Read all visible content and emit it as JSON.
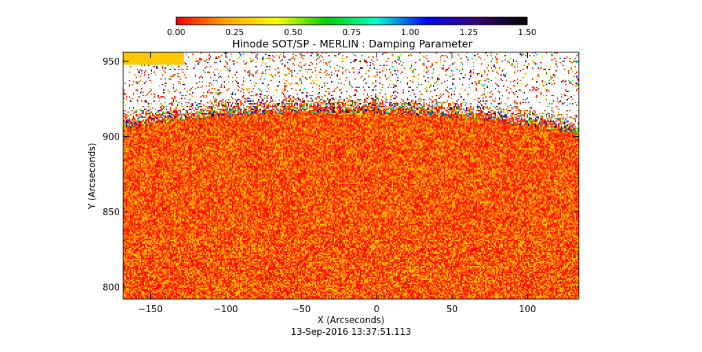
{
  "chart_data": {
    "type": "heatmap",
    "title": "Hinode SOT/SP - MERLIN : Damping Parameter",
    "xlabel": "X (Arcseconds)",
    "ylabel": "Y (Arcseconds)",
    "timestamp": "13-Sep-2016 13:37:51.113",
    "xlim": [
      -168,
      134
    ],
    "ylim": [
      792,
      956
    ],
    "x_ticks": [
      {
        "value": -150,
        "label": "−150"
      },
      {
        "value": -100,
        "label": "−100"
      },
      {
        "value": -50,
        "label": "−50"
      },
      {
        "value": 0,
        "label": "0"
      },
      {
        "value": 50,
        "label": "50"
      },
      {
        "value": 100,
        "label": "100"
      }
    ],
    "y_ticks": [
      {
        "value": 800,
        "label": "800"
      },
      {
        "value": 850,
        "label": "850"
      },
      {
        "value": 900,
        "label": "900"
      },
      {
        "value": 950,
        "label": "950"
      }
    ],
    "colorbar": {
      "range": [
        0,
        1.5
      ],
      "ticks": [
        {
          "value": 0,
          "label": "0.00"
        },
        {
          "value": 0.25,
          "label": "0.25"
        },
        {
          "value": 0.5,
          "label": "0.50"
        },
        {
          "value": 0.75,
          "label": "0.75"
        },
        {
          "value": 1.0,
          "label": "1.00"
        },
        {
          "value": 1.25,
          "label": "1.25"
        },
        {
          "value": 1.5,
          "label": "1.50"
        }
      ],
      "colors": [
        "#ff0000",
        "#ffa500",
        "#ffff00",
        "#00d000",
        "#00ffcc",
        "#0000ff",
        "#3a0075",
        "#000000"
      ]
    },
    "field": {
      "limb_y_range": [
        908,
        924
      ],
      "dominant_value_range": [
        0.0,
        0.3
      ],
      "saturated_patch": {
        "x": [
          -168,
          -128
        ],
        "y": [
          948,
          956
        ],
        "value": 0.3
      }
    }
  }
}
